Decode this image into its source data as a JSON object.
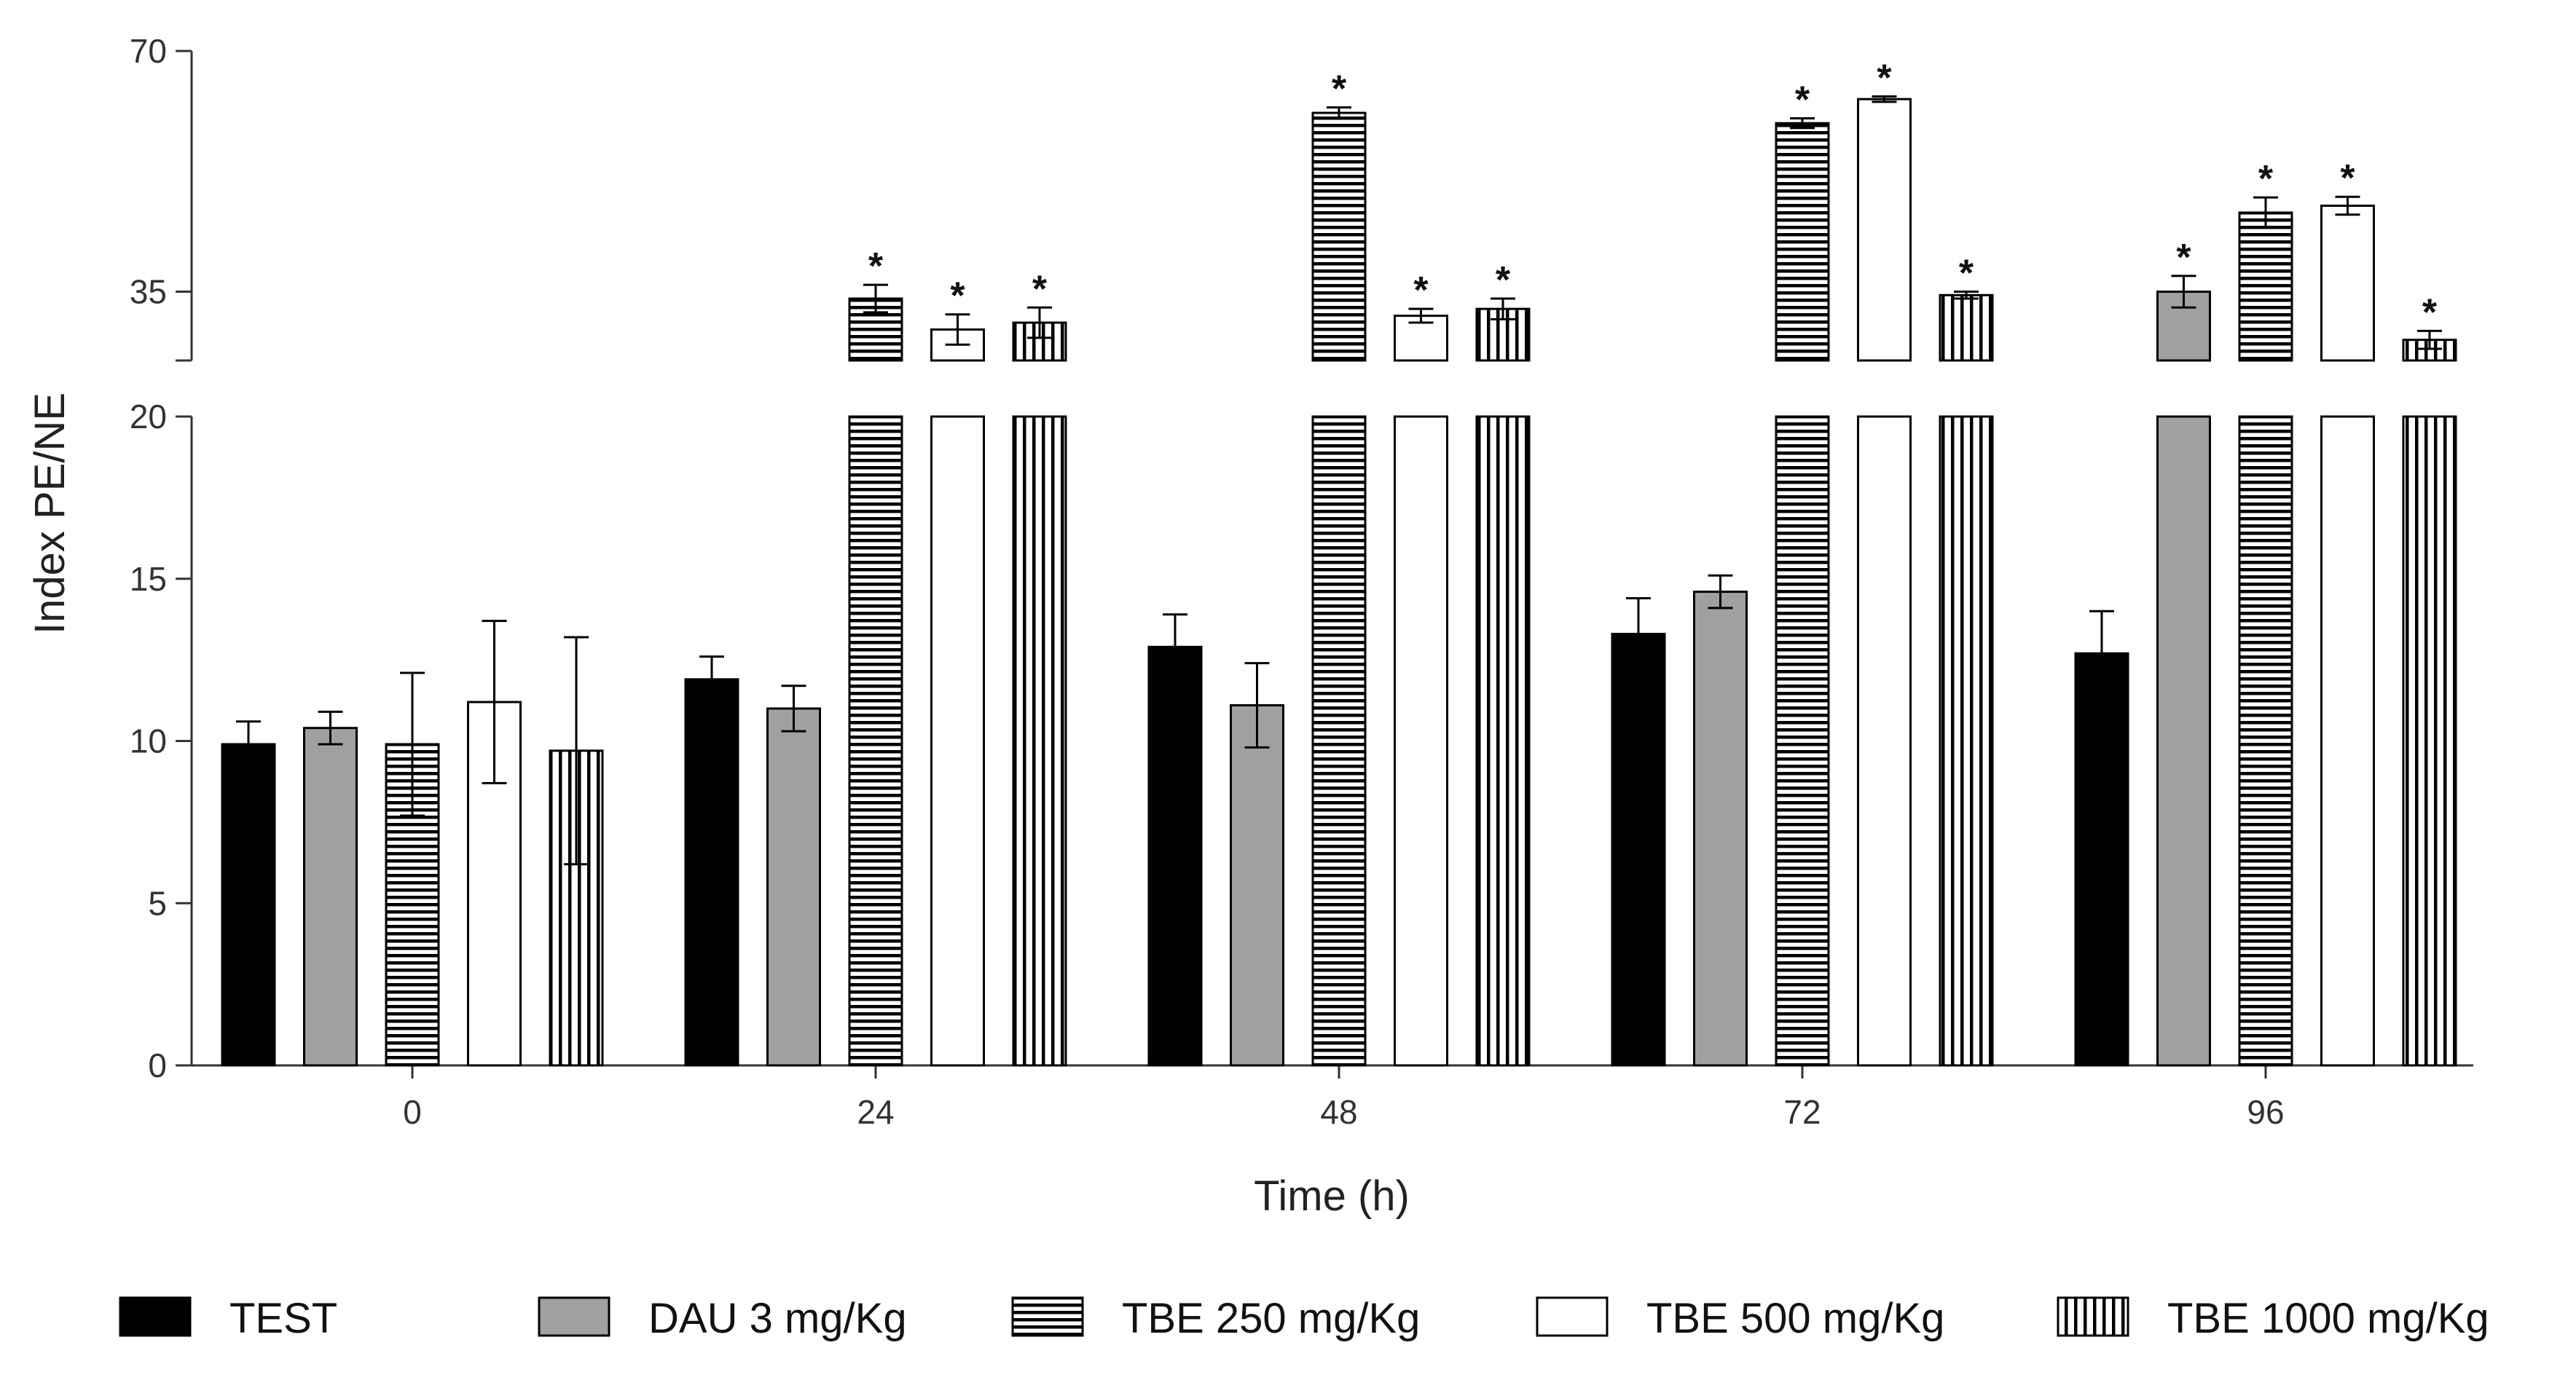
{
  "chart_data": {
    "type": "bar",
    "title": "",
    "xlabel": "Time (h)",
    "ylabel": "Index PE/NE",
    "categories": [
      "0",
      "24",
      "48",
      "72",
      "96"
    ],
    "y_axis_broken": true,
    "y_lower_range": [
      0,
      20
    ],
    "y_lower_ticks": [
      0,
      5,
      10,
      15,
      20
    ],
    "y_upper_range": [
      25,
      70
    ],
    "y_upper_ticks": [
      35,
      70
    ],
    "significance_marker": "*",
    "series": [
      {
        "name": "TEST",
        "pattern": "solid-black",
        "values": [
          9.9,
          11.9,
          12.9,
          13.3,
          12.7
        ],
        "errors": [
          0.7,
          0.7,
          1.0,
          1.1,
          1.3
        ],
        "significant": [
          false,
          false,
          false,
          false,
          false
        ]
      },
      {
        "name": "DAU 3 mg/Kg",
        "pattern": "solid-gray",
        "values": [
          10.4,
          11.0,
          11.1,
          14.6,
          35.0
        ],
        "errors": [
          0.5,
          0.7,
          1.3,
          0.5,
          2.3
        ],
        "significant": [
          false,
          false,
          false,
          false,
          true
        ]
      },
      {
        "name": "TBE 250 mg/Kg",
        "pattern": "horizontal-stripes",
        "values": [
          9.9,
          34.0,
          61.0,
          59.5,
          46.5
        ],
        "errors": [
          2.2,
          2.0,
          0.8,
          0.7,
          2.2
        ],
        "significant": [
          false,
          true,
          true,
          true,
          true
        ]
      },
      {
        "name": "TBE 500 mg/Kg",
        "pattern": "white",
        "values": [
          11.2,
          29.5,
          31.5,
          63.0,
          47.5
        ],
        "errors": [
          2.5,
          2.2,
          1.0,
          0.4,
          1.3
        ],
        "significant": [
          false,
          true,
          true,
          true,
          true
        ]
      },
      {
        "name": "TBE 1000 mg/Kg",
        "pattern": "vertical-stripes",
        "values": [
          9.7,
          30.5,
          32.5,
          34.5,
          28.0
        ],
        "errors": [
          3.5,
          2.2,
          1.5,
          0.5,
          1.3
        ],
        "significant": [
          false,
          true,
          true,
          true,
          true
        ]
      }
    ]
  },
  "colors": {
    "axis": "#333333",
    "solid-black": "#000000",
    "solid-gray": "#a0a0a0",
    "white": "#ffffff",
    "stripe": "#000000"
  }
}
